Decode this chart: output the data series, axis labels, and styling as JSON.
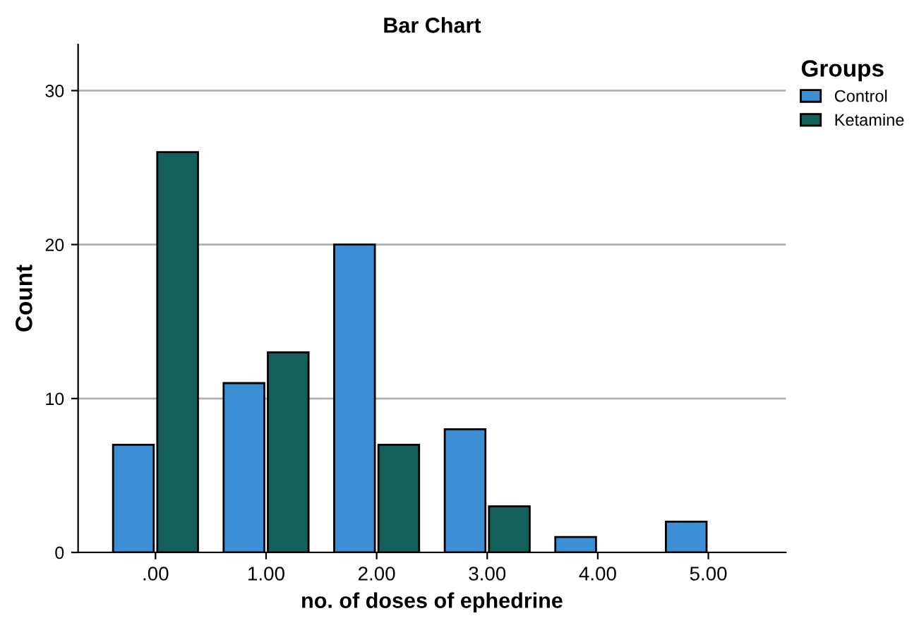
{
  "chart_data": {
    "type": "bar",
    "title": "Bar Chart",
    "xlabel": "no. of doses of ephedrine",
    "ylabel": "Count",
    "legend_title": "Groups",
    "categories": [
      ".00",
      "1.00",
      "2.00",
      "3.00",
      "4.00",
      "5.00"
    ],
    "series": [
      {
        "name": "Control",
        "color": "#3c8fd4",
        "values": [
          7,
          11,
          20,
          8,
          1,
          2
        ]
      },
      {
        "name": "Ketamine",
        "color": "#135f5a",
        "values": [
          26,
          13,
          7,
          3,
          null,
          null
        ]
      }
    ],
    "ylim": [
      0,
      33
    ],
    "yticks": [
      0,
      10,
      20,
      30
    ],
    "grid": "y",
    "legend": "top right"
  }
}
